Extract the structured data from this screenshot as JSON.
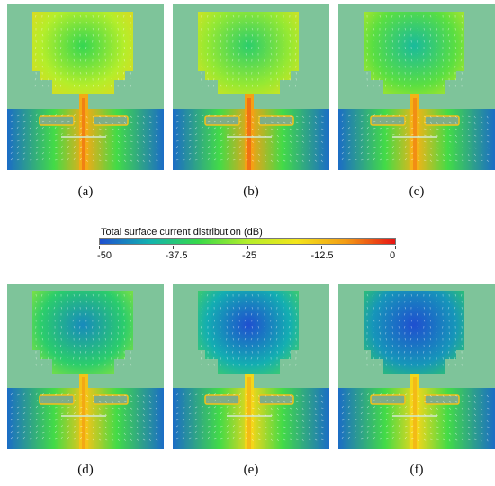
{
  "colorbar": {
    "title": "Total surface current distribution (dB)",
    "ticks": [
      "-50",
      "-37.5",
      "-25",
      "-12.5",
      "0"
    ],
    "range": [
      -50,
      0
    ],
    "colors": [
      "#1f4fd0",
      "#12b2b0",
      "#37d94a",
      "#b4ee2a",
      "#f3e51b",
      "#f39b14",
      "#e81414"
    ]
  },
  "substrate_color": "#7ec49a",
  "panels": [
    {
      "label": "(a)",
      "patch_level": 0.5,
      "feed_level": 0.8
    },
    {
      "label": "(b)",
      "patch_level": 0.46,
      "feed_level": 0.82
    },
    {
      "label": "(c)",
      "patch_level": 0.38,
      "feed_level": 0.78
    },
    {
      "label": "(d)",
      "patch_level": 0.28,
      "feed_level": 0.74
    },
    {
      "label": "(e)",
      "patch_level": 0.16,
      "feed_level": 0.7
    },
    {
      "label": "(f)",
      "patch_level": 0.12,
      "feed_level": 0.7
    }
  ]
}
